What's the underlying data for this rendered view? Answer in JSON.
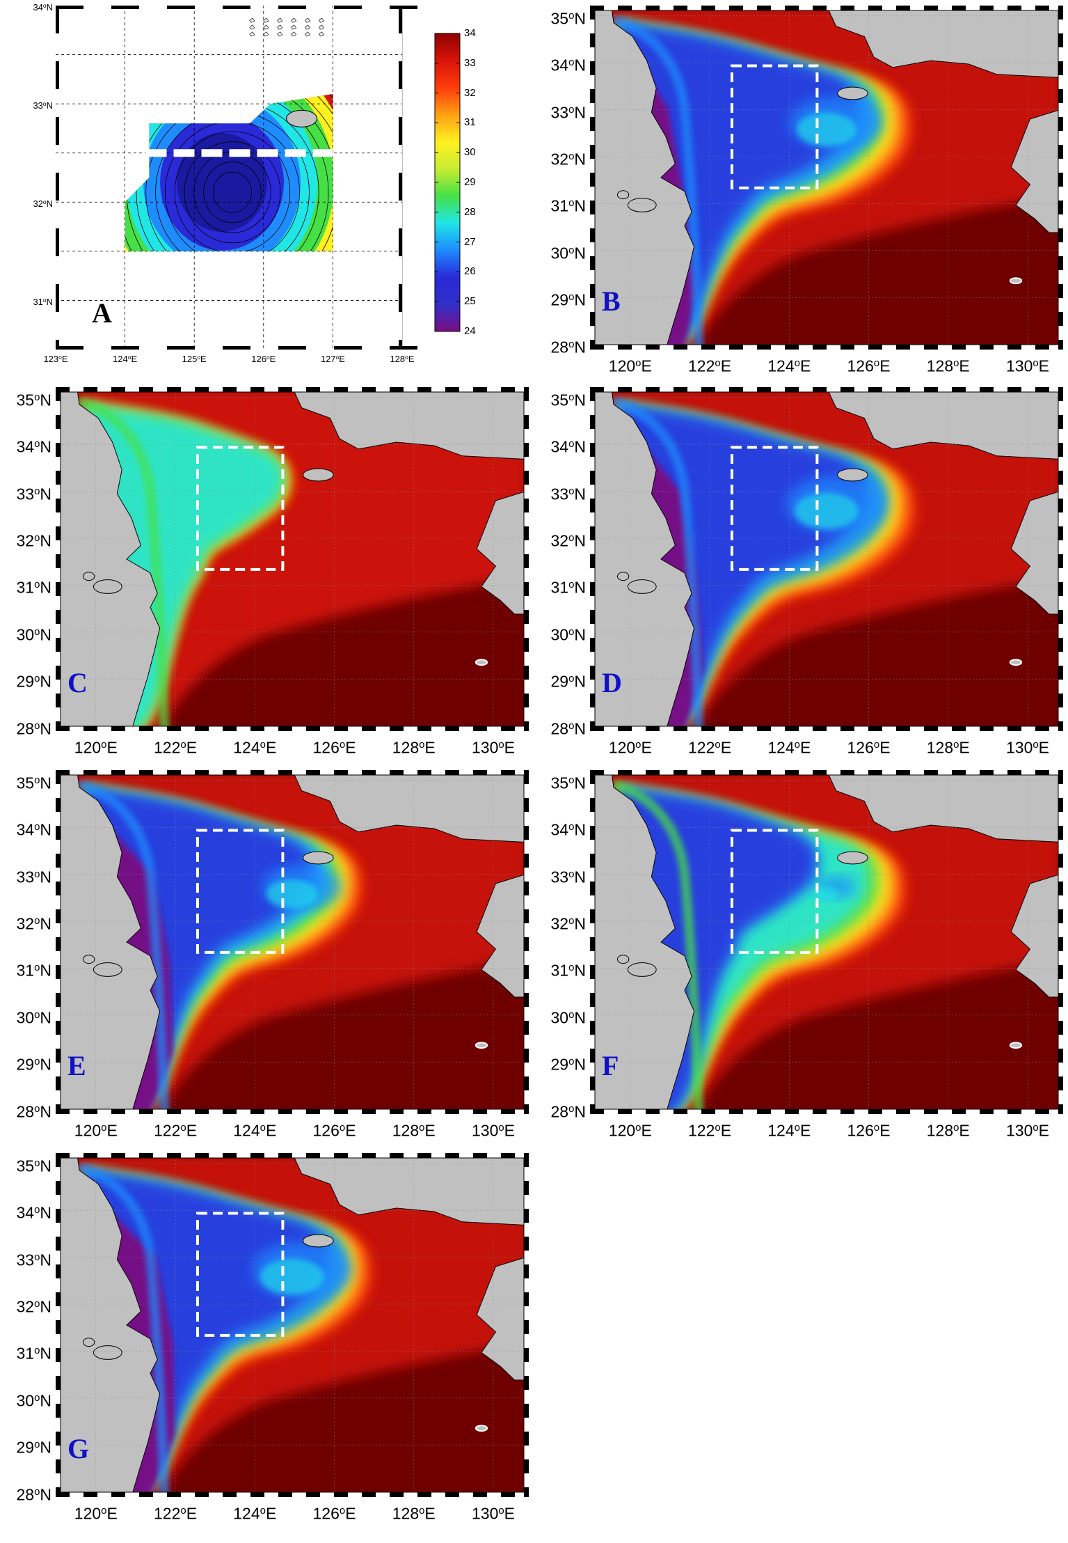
{
  "figure": {
    "panels": [
      {
        "id": "A",
        "kind": "contour",
        "label": "A",
        "label_color": "#000000",
        "lon_ticks": [
          "123",
          "124",
          "125",
          "126",
          "127",
          "128"
        ],
        "lat_ticks": [
          "34",
          "",
          "33",
          "",
          "32",
          "",
          "31"
        ],
        "colorbar": {
          "ticks": [
            "34",
            "33",
            "32",
            "31",
            "30",
            "29",
            "28",
            "27",
            "26",
            "25",
            "24"
          ]
        }
      },
      {
        "id": "B",
        "kind": "satellite",
        "label": "B",
        "label_color": "#1010c8",
        "lon_ticks": [
          "120",
          "122",
          "124",
          "126",
          "128",
          "130"
        ],
        "lat_ticks": [
          "35",
          "34",
          "33",
          "32",
          "31",
          "30",
          "29",
          "28"
        ],
        "scene": {
          "front": 0.58,
          "purple": 0.32,
          "blue": 0.65,
          "box_cool": 0.7
        }
      },
      {
        "id": "C",
        "kind": "satellite",
        "label": "C",
        "label_color": "#1010c8",
        "lon_ticks": [
          "120",
          "122",
          "124",
          "126",
          "128",
          "130"
        ],
        "lat_ticks": [
          "35",
          "34",
          "33",
          "32",
          "31",
          "30",
          "29",
          "28"
        ],
        "scene": {
          "front": 0.12,
          "purple": 0.0,
          "blue": 0.05,
          "box_cool": 0.05
        }
      },
      {
        "id": "D",
        "kind": "satellite",
        "label": "D",
        "label_color": "#1010c8",
        "lon_ticks": [
          "120",
          "122",
          "124",
          "126",
          "128",
          "130"
        ],
        "lat_ticks": [
          "35",
          "34",
          "33",
          "32",
          "31",
          "30",
          "29",
          "28"
        ],
        "scene": {
          "front": 0.6,
          "purple": 0.5,
          "blue": 0.75,
          "box_cool": 0.75
        }
      },
      {
        "id": "E",
        "kind": "satellite",
        "label": "E",
        "label_color": "#1010c8",
        "lon_ticks": [
          "120",
          "122",
          "124",
          "126",
          "128",
          "130"
        ],
        "lat_ticks": [
          "35",
          "34",
          "33",
          "32",
          "31",
          "30",
          "29",
          "28"
        ],
        "scene": {
          "front": 0.5,
          "purple": 0.6,
          "blue": 0.5,
          "box_cool": 0.6
        }
      },
      {
        "id": "F",
        "kind": "satellite",
        "label": "F",
        "label_color": "#1010c8",
        "lon_ticks": [
          "120",
          "122",
          "124",
          "126",
          "128",
          "130"
        ],
        "lat_ticks": [
          "35",
          "34",
          "33",
          "32",
          "31",
          "30",
          "29",
          "28"
        ],
        "scene": {
          "front": 0.55,
          "purple": 0.0,
          "blue": 0.15,
          "box_cool": 0.3
        }
      },
      {
        "id": "G",
        "kind": "satellite",
        "label": "G",
        "label_color": "#1010c8",
        "lon_ticks": [
          "120",
          "122",
          "124",
          "126",
          "128",
          "130"
        ],
        "lat_ticks": [
          "35",
          "34",
          "33",
          "32",
          "31",
          "30",
          "29",
          "28"
        ],
        "scene": {
          "front": 0.55,
          "purple": 0.65,
          "blue": 0.7,
          "box_cool": 0.75
        }
      }
    ],
    "colors": {
      "land": "#c0c0c0",
      "sea_warm": "#6e0000",
      "box": "#ffffff",
      "palette": [
        "#7a0d82",
        "#2a2ad8",
        "#1e8cff",
        "#20e6e6",
        "#46e046",
        "#c8ec32",
        "#fff020",
        "#ffa014",
        "#ff3c0a",
        "#d8140a",
        "#900000",
        "#6e0000"
      ]
    }
  }
}
